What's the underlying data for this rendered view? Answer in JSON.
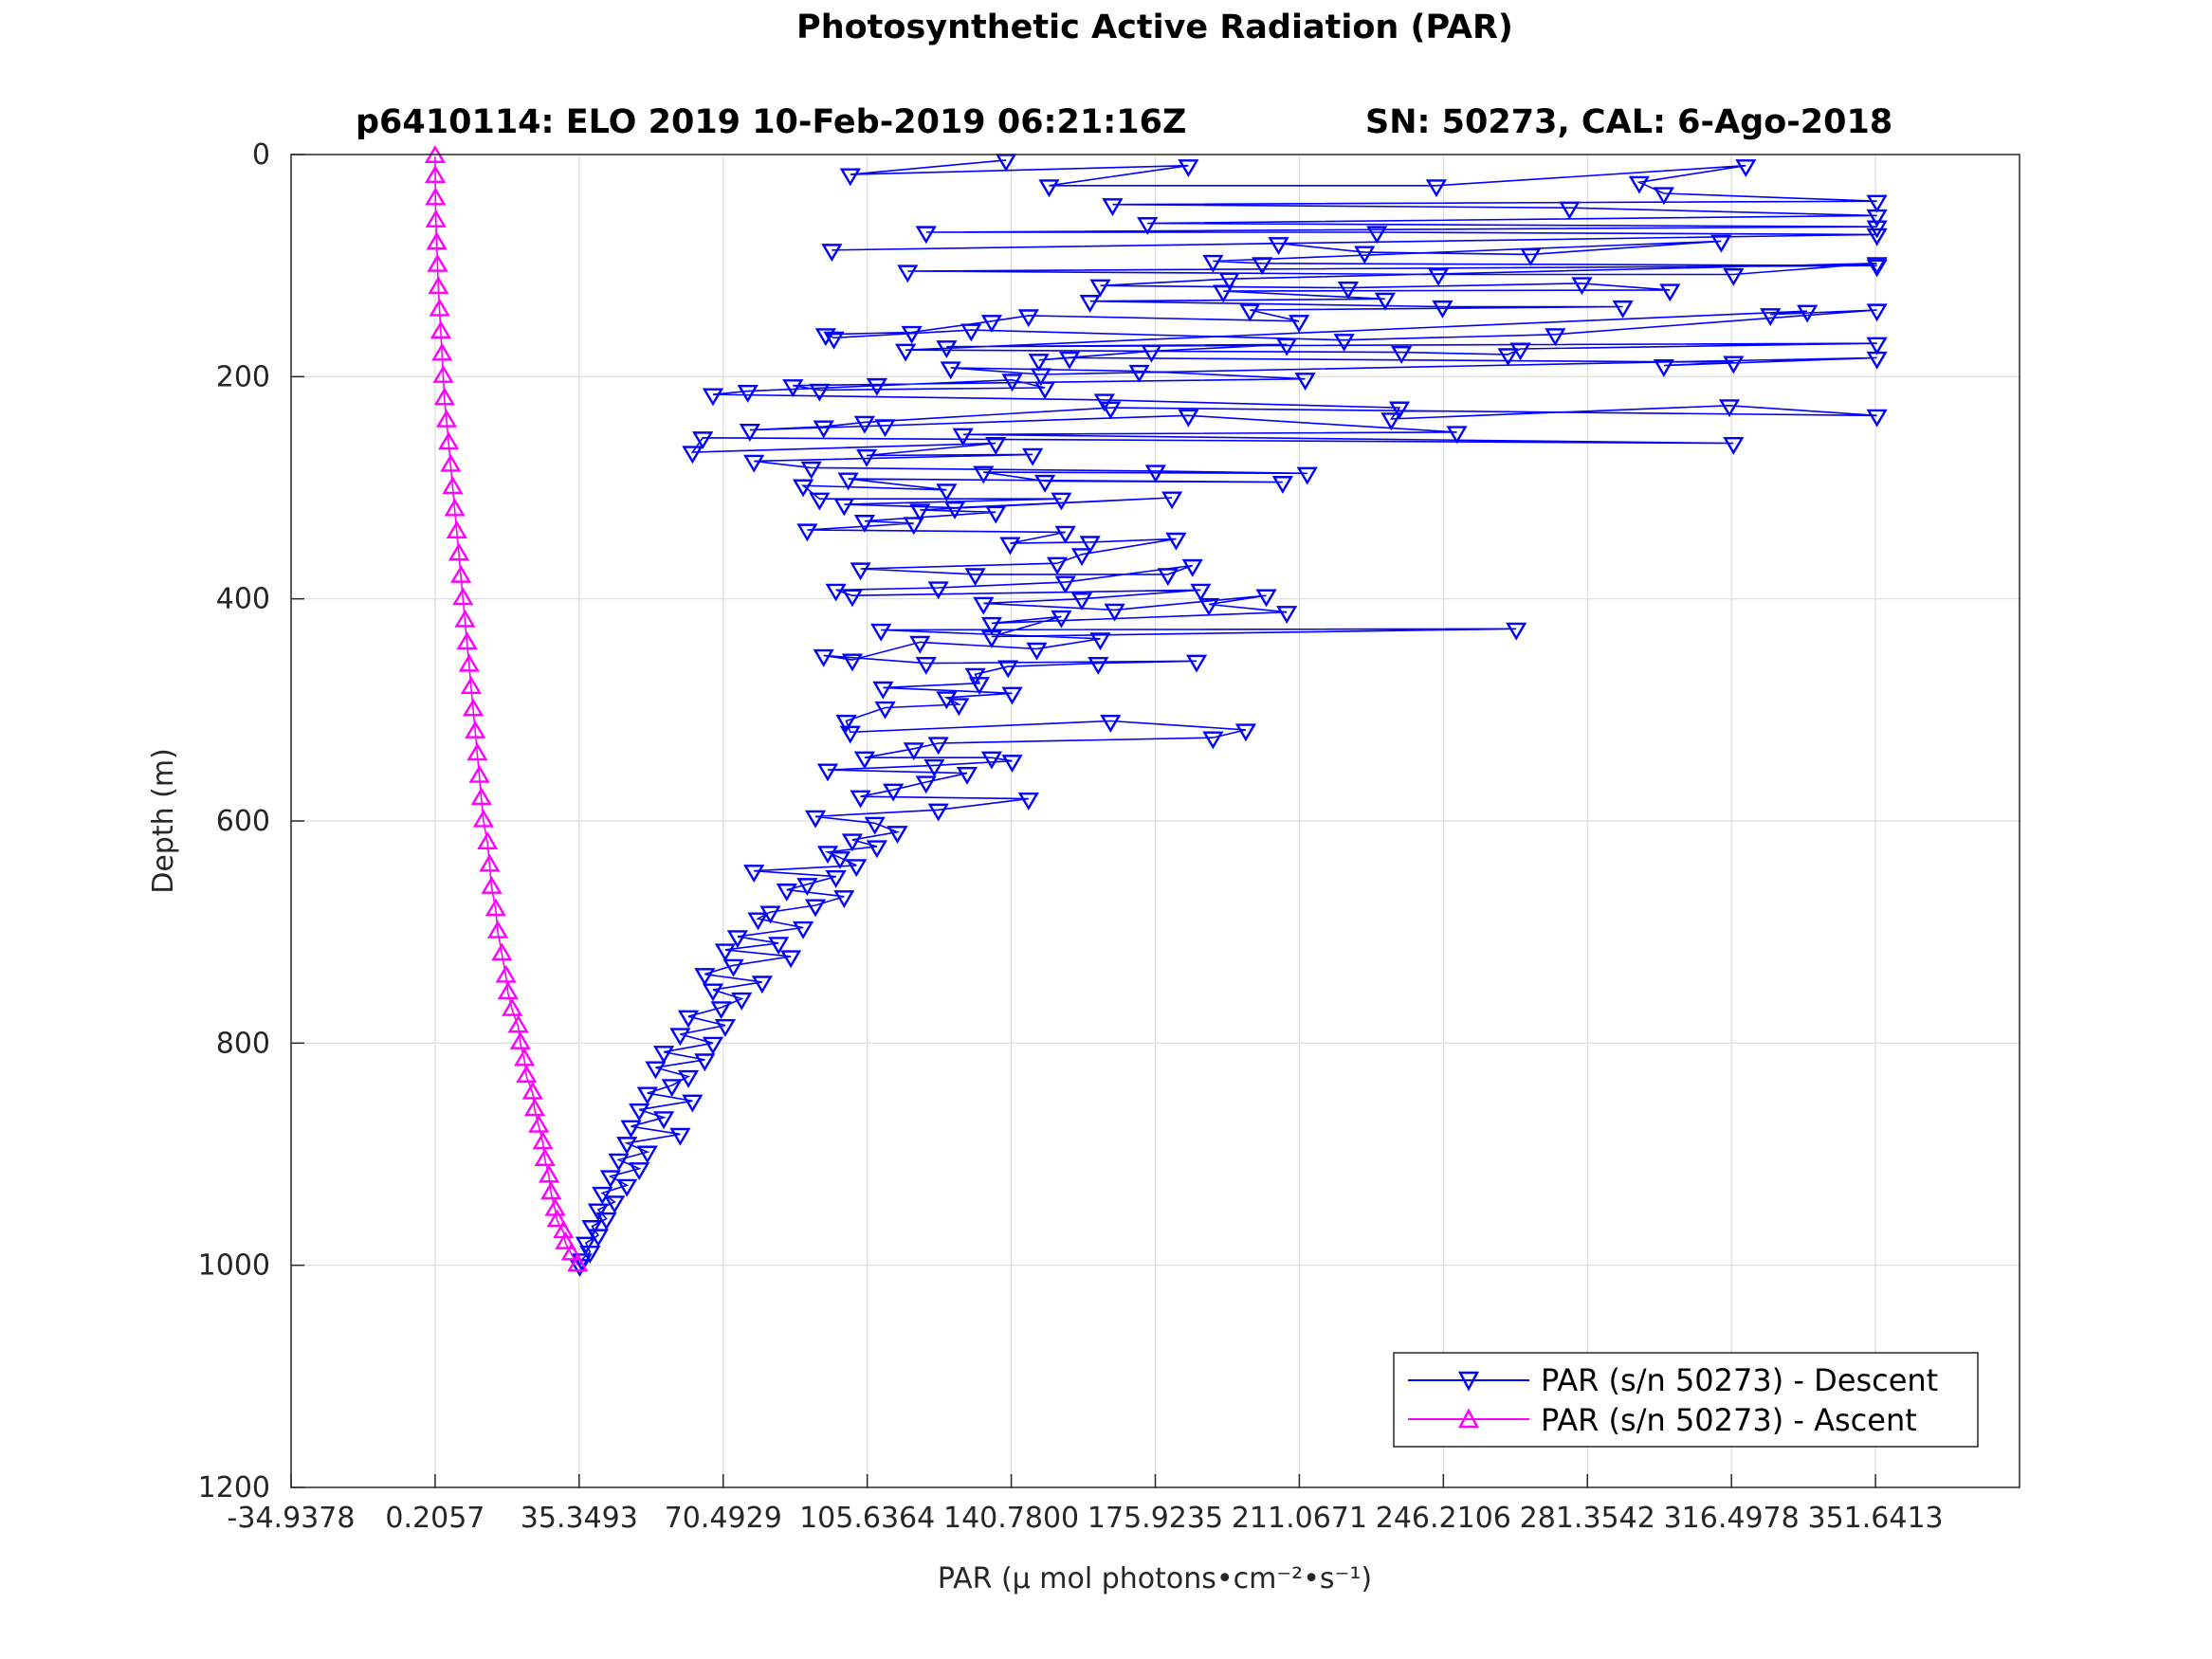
{
  "chart_data": {
    "type": "line",
    "title": "Photosynthetic Active Radiation (PAR)",
    "subtitle_left": "p6410114: ELO 2019 10-Feb-2019 06:21:16Z",
    "subtitle_right": "SN: 50273, CAL: 6-Ago-2018",
    "xlabel": "PAR (μ mol photons•cm⁻²•s⁻¹)",
    "ylabel": "Depth (m)",
    "xlim": [
      -34.9378,
      386.7849
    ],
    "ylim": [
      0,
      1200
    ],
    "y_reversed": true,
    "grid": true,
    "legend_placement": "bottom-right",
    "x_ticks": [
      "-34.9378",
      "0.2057",
      "35.3493",
      "70.4929",
      "105.6364",
      "140.7800",
      "175.9235",
      "211.0671",
      "246.2106",
      "281.3542",
      "316.4978",
      "351.6413"
    ],
    "y_ticks": [
      "0",
      "200",
      "400",
      "600",
      "800",
      "1000",
      "1200"
    ],
    "series": [
      {
        "name": "PAR (s/n 50273) - Descent",
        "color": "#0000ff",
        "marker": "triangle-down",
        "points": [
          [
            139.5,
            5
          ],
          [
            101.5,
            18
          ],
          [
            184.0,
            10
          ],
          [
            150.0,
            28
          ],
          [
            244.5,
            28
          ],
          [
            320.0,
            10
          ],
          [
            294.0,
            25
          ],
          [
            300.0,
            35
          ],
          [
            352.0,
            42
          ],
          [
            165.5,
            45
          ],
          [
            277.0,
            48
          ],
          [
            352.0,
            55
          ],
          [
            174.0,
            62
          ],
          [
            352.0,
            65
          ],
          [
            120.0,
            70
          ],
          [
            230.0,
            70
          ],
          [
            352.0,
            72
          ],
          [
            97.0,
            86
          ],
          [
            206.0,
            80
          ],
          [
            227.0,
            88
          ],
          [
            267.5,
            90
          ],
          [
            314.0,
            78
          ],
          [
            190.0,
            96
          ],
          [
            202.0,
            98
          ],
          [
            352.0,
            100
          ],
          [
            115.5,
            105
          ],
          [
            245.0,
            108
          ],
          [
            317.0,
            108
          ],
          [
            352.0,
            98
          ],
          [
            194.0,
            112
          ],
          [
            162.5,
            118
          ],
          [
            223.0,
            120
          ],
          [
            280.0,
            116
          ],
          [
            301.5,
            122
          ],
          [
            192.5,
            123
          ],
          [
            232.0,
            130
          ],
          [
            160.0,
            132
          ],
          [
            246.0,
            137
          ],
          [
            290.0,
            137
          ],
          [
            199.0,
            140
          ],
          [
            211.0,
            150
          ],
          [
            145.0,
            145
          ],
          [
            136.0,
            150
          ],
          [
            116.5,
            160
          ],
          [
            95.5,
            162
          ],
          [
            97.5,
            165
          ],
          [
            131.0,
            158
          ],
          [
            222.0,
            167
          ],
          [
            273.5,
            162
          ],
          [
            352.0,
            140
          ],
          [
            326.0,
            144
          ],
          [
            335.0,
            141
          ],
          [
            115.0,
            176
          ],
          [
            236.0,
            178
          ],
          [
            262.0,
            180
          ],
          [
            265.0,
            175
          ],
          [
            352.0,
            170
          ],
          [
            125.0,
            173
          ],
          [
            208.0,
            171
          ],
          [
            175.0,
            177
          ],
          [
            147.5,
            185
          ],
          [
            155.0,
            183
          ],
          [
            317.0,
            187
          ],
          [
            300.0,
            190
          ],
          [
            352.0,
            183
          ],
          [
            148.0,
            198
          ],
          [
            126.0,
            192
          ],
          [
            172.0,
            195
          ],
          [
            212.5,
            202
          ],
          [
            108.0,
            207
          ],
          [
            87.5,
            208
          ],
          [
            94.0,
            212
          ],
          [
            149.0,
            210
          ],
          [
            141.0,
            203
          ],
          [
            76.5,
            213
          ],
          [
            68.0,
            216
          ],
          [
            163.5,
            221
          ],
          [
            235.5,
            228
          ],
          [
            233.5,
            238
          ],
          [
            316.0,
            226
          ],
          [
            352.0,
            235
          ],
          [
            165.0,
            228
          ],
          [
            105.0,
            241
          ],
          [
            95.0,
            245
          ],
          [
            77.0,
            248
          ],
          [
            110.0,
            244
          ],
          [
            184.0,
            235
          ],
          [
            249.5,
            250
          ],
          [
            129.0,
            252
          ],
          [
            317.0,
            260
          ],
          [
            65.5,
            255
          ],
          [
            63.0,
            268
          ],
          [
            137.0,
            260
          ],
          [
            105.5,
            271
          ],
          [
            146.0,
            270
          ],
          [
            78.0,
            276
          ],
          [
            92.0,
            282
          ],
          [
            176.0,
            285
          ],
          [
            213.0,
            287
          ],
          [
            134.0,
            286
          ],
          [
            149.0,
            294
          ],
          [
            207.0,
            295
          ],
          [
            101.0,
            292
          ],
          [
            125.0,
            302
          ],
          [
            90.0,
            298
          ],
          [
            94.0,
            310
          ],
          [
            153.0,
            310
          ],
          [
            100.0,
            315
          ],
          [
            127.0,
            318
          ],
          [
            180.0,
            309
          ],
          [
            118.5,
            320
          ],
          [
            137.0,
            322
          ],
          [
            105.0,
            330
          ],
          [
            117.0,
            332
          ],
          [
            91.0,
            338
          ],
          [
            154.0,
            340
          ],
          [
            140.5,
            350
          ],
          [
            160.0,
            349
          ],
          [
            181.0,
            346
          ],
          [
            158.0,
            360
          ],
          [
            152.0,
            368
          ],
          [
            104.0,
            373
          ],
          [
            132.0,
            378
          ],
          [
            179.0,
            378
          ],
          [
            185.0,
            370
          ],
          [
            154.0,
            385
          ],
          [
            123.0,
            390
          ],
          [
            98.0,
            392
          ],
          [
            102.0,
            397
          ],
          [
            187.0,
            392
          ],
          [
            158.0,
            400
          ],
          [
            134.0,
            404
          ],
          [
            166.0,
            410
          ],
          [
            203.0,
            397
          ],
          [
            189.0,
            405
          ],
          [
            208.0,
            412
          ],
          [
            136.0,
            422
          ],
          [
            153.0,
            416
          ],
          [
            136.0,
            434
          ],
          [
            264.0,
            427
          ],
          [
            109.0,
            428
          ],
          [
            162.5,
            436
          ],
          [
            147.0,
            445
          ],
          [
            118.5,
            439
          ],
          [
            102.0,
            455
          ],
          [
            95.0,
            451
          ],
          [
            120.0,
            458
          ],
          [
            186.0,
            456
          ],
          [
            162.0,
            458
          ],
          [
            140.0,
            461
          ],
          [
            132.0,
            468
          ],
          [
            133.0,
            476
          ],
          [
            109.5,
            480
          ],
          [
            141.0,
            485
          ],
          [
            125.0,
            489
          ],
          [
            128.0,
            495
          ],
          [
            110.0,
            498
          ],
          [
            100.5,
            510
          ],
          [
            101.5,
            520
          ],
          [
            165.0,
            510
          ],
          [
            198.0,
            518
          ],
          [
            190.0,
            525
          ],
          [
            123.0,
            530
          ],
          [
            117.0,
            535
          ],
          [
            105.0,
            543
          ],
          [
            136.0,
            543
          ],
          [
            141.0,
            546
          ],
          [
            122.0,
            550
          ],
          [
            96.0,
            554
          ],
          [
            130.0,
            557
          ],
          [
            120.0,
            565
          ],
          [
            112.0,
            572
          ],
          [
            104.0,
            578
          ],
          [
            145.0,
            580
          ],
          [
            123.0,
            590
          ],
          [
            93.0,
            596
          ],
          [
            107.5,
            602
          ],
          [
            113.0,
            610
          ],
          [
            102.0,
            617
          ],
          [
            108.0,
            623
          ],
          [
            96.0,
            628
          ],
          [
            99.0,
            633
          ],
          [
            103.0,
            640
          ],
          [
            78.0,
            645
          ],
          [
            98.0,
            650
          ],
          [
            91.0,
            657
          ],
          [
            86.0,
            662
          ],
          [
            100.0,
            668
          ],
          [
            93.0,
            676
          ],
          [
            82.0,
            682
          ],
          [
            79.0,
            688
          ],
          [
            90.0,
            696
          ],
          [
            74.0,
            704
          ],
          [
            84.0,
            710
          ],
          [
            71.0,
            716
          ],
          [
            87.0,
            722
          ],
          [
            73.0,
            730
          ],
          [
            66.0,
            738
          ],
          [
            80.0,
            745
          ],
          [
            68.0,
            752
          ],
          [
            75.0,
            760
          ],
          [
            70.0,
            768
          ],
          [
            62.0,
            776
          ],
          [
            71.0,
            784
          ],
          [
            60.0,
            792
          ],
          [
            68.0,
            800
          ],
          [
            56.0,
            808
          ],
          [
            66.0,
            815
          ],
          [
            54.0,
            822
          ],
          [
            62.0,
            830
          ],
          [
            58.0,
            838
          ],
          [
            52.0,
            845
          ],
          [
            63.0,
            852
          ],
          [
            50.0,
            860
          ],
          [
            56.0,
            867
          ],
          [
            48.0,
            875
          ],
          [
            60.0,
            882
          ],
          [
            47.0,
            890
          ],
          [
            52.0,
            898
          ],
          [
            45.0,
            905
          ],
          [
            50.0,
            913
          ],
          [
            43.0,
            920
          ],
          [
            47.0,
            928
          ],
          [
            41.0,
            935
          ],
          [
            44.0,
            943
          ],
          [
            40.0,
            950
          ],
          [
            42.0,
            958
          ],
          [
            38.5,
            965
          ],
          [
            40.0,
            973
          ],
          [
            37.0,
            980
          ],
          [
            38.0,
            988
          ],
          [
            36.0,
            995
          ],
          [
            35.5,
            1000
          ]
        ]
      },
      {
        "name": "PAR (s/n 50273) - Ascent",
        "color": "#ff00ff",
        "marker": "triangle-up",
        "points": [
          [
            35.0,
            1000
          ],
          [
            33.5,
            990
          ],
          [
            32.0,
            980
          ],
          [
            31.5,
            970
          ],
          [
            30.0,
            960
          ],
          [
            29.5,
            950
          ],
          [
            28.5,
            935
          ],
          [
            28.0,
            920
          ],
          [
            27.0,
            905
          ],
          [
            26.5,
            890
          ],
          [
            25.5,
            875
          ],
          [
            24.5,
            860
          ],
          [
            24.0,
            845
          ],
          [
            22.5,
            830
          ],
          [
            22.0,
            815
          ],
          [
            21.0,
            800
          ],
          [
            20.5,
            785
          ],
          [
            19.0,
            770
          ],
          [
            18.0,
            755
          ],
          [
            17.5,
            740
          ],
          [
            16.5,
            720
          ],
          [
            15.5,
            700
          ],
          [
            15.0,
            680
          ],
          [
            14.0,
            660
          ],
          [
            13.5,
            640
          ],
          [
            13.0,
            620
          ],
          [
            12.0,
            600
          ],
          [
            11.5,
            580
          ],
          [
            11.0,
            560
          ],
          [
            10.5,
            540
          ],
          [
            10.0,
            520
          ],
          [
            9.5,
            500
          ],
          [
            9.0,
            480
          ],
          [
            8.5,
            460
          ],
          [
            8.0,
            440
          ],
          [
            7.5,
            420
          ],
          [
            7.0,
            400
          ],
          [
            6.5,
            380
          ],
          [
            6.0,
            360
          ],
          [
            5.5,
            340
          ],
          [
            5.0,
            320
          ],
          [
            4.5,
            300
          ],
          [
            4.0,
            280
          ],
          [
            3.5,
            260
          ],
          [
            3.0,
            240
          ],
          [
            2.5,
            220
          ],
          [
            2.2,
            200
          ],
          [
            1.9,
            180
          ],
          [
            1.6,
            160
          ],
          [
            1.3,
            140
          ],
          [
            1.0,
            120
          ],
          [
            0.8,
            100
          ],
          [
            0.6,
            80
          ],
          [
            0.4,
            60
          ],
          [
            0.3,
            40
          ],
          [
            0.25,
            20
          ],
          [
            0.21,
            2
          ]
        ]
      }
    ]
  }
}
